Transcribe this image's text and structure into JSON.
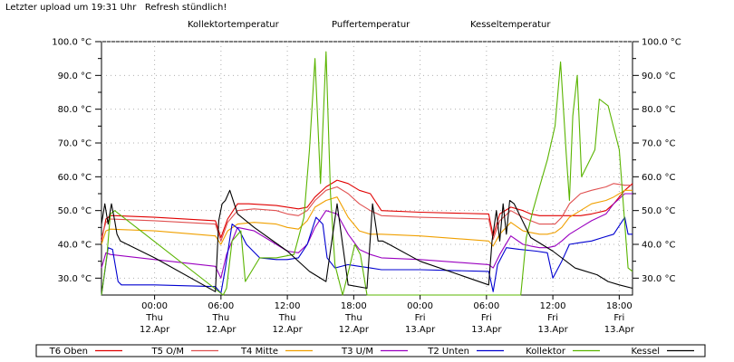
{
  "header": {
    "status_text": "Letzter upload um 19:31 Uhr   Refresh stündlich!",
    "panel_titles": [
      "Kollektortemperatur",
      "Puffertemperatur",
      "Kesseltemperatur"
    ]
  },
  "chart_data": {
    "type": "line",
    "title": "",
    "xlabel": "",
    "ylabel": "",
    "x_unit": "hours since Thu 12.Apr 00:00",
    "xlim": [
      -4.8,
      43.2
    ],
    "ylim": [
      25,
      100
    ],
    "grid": true,
    "y_ticks": [
      30,
      40,
      50,
      60,
      70,
      80,
      90,
      100
    ],
    "y_tick_labels": [
      "30.0 °C",
      "40.0 °C",
      "50.0 °C",
      "60.0 °C",
      "70.0 °C",
      "80.0 °C",
      "90.0 °C",
      "100.0 °C"
    ],
    "x_ticks": [
      {
        "x": 0,
        "time": "00:00",
        "day": "Thu",
        "date": "12.Apr"
      },
      {
        "x": 6,
        "time": "06:00",
        "day": "Thu",
        "date": "12.Apr"
      },
      {
        "x": 12,
        "time": "12:00",
        "day": "Thu",
        "date": "12.Apr"
      },
      {
        "x": 18,
        "time": "18:00",
        "day": "Thu",
        "date": "12.Apr"
      },
      {
        "x": 24,
        "time": "00:00",
        "day": "Fri",
        "date": "13.Apr"
      },
      {
        "x": 30,
        "time": "06:00",
        "day": "Fri",
        "date": "13.Apr"
      },
      {
        "x": 36,
        "time": "12:00",
        "day": "Fri",
        "date": "13.Apr"
      },
      {
        "x": 42,
        "time": "18:00",
        "day": "Fri",
        "date": "13.Apr"
      }
    ],
    "legend_position": "bottom",
    "series": [
      {
        "name": "T6 Oben",
        "color": "#e00000",
        "x": [
          -4.8,
          -4.4,
          -4.0,
          -3.6,
          0,
          5.5,
          6.0,
          6.6,
          7.5,
          8.5,
          11,
          12,
          13,
          13.8,
          14.5,
          15.5,
          16.5,
          17.5,
          18.5,
          19.5,
          20.5,
          24,
          30.2,
          30.6,
          31.2,
          32.2,
          33.3,
          34,
          34.8,
          35.5,
          36.2,
          36.8,
          37.5,
          38.5,
          39.5,
          40.8,
          41.5,
          42.5,
          43.2
        ],
        "y": [
          41,
          47.5,
          48.5,
          48.5,
          48,
          47,
          42,
          47.5,
          52,
          52,
          51.5,
          51,
          50.5,
          51,
          54,
          57,
          59,
          58,
          56,
          55,
          50,
          49.5,
          49,
          42.5,
          49,
          51,
          50,
          49,
          48.5,
          48.5,
          48.5,
          48.5,
          48.5,
          48.5,
          49,
          50,
          52,
          56,
          58
        ]
      },
      {
        "name": "T5 O/M",
        "color": "#e05050",
        "x": [
          -4.8,
          -4.4,
          -4.0,
          0,
          5.5,
          6.0,
          6.6,
          7.5,
          9,
          11,
          12,
          13,
          13.8,
          14.5,
          15.5,
          16.5,
          17.5,
          18.5,
          19.5,
          20.5,
          24,
          30.2,
          30.6,
          31.2,
          32.2,
          33.3,
          34,
          34.8,
          35.5,
          36.2,
          36.8,
          37.5,
          38.5,
          39.5,
          40.8,
          41.5,
          42.5,
          43.2
        ],
        "y": [
          42,
          46.5,
          47.5,
          47,
          46,
          41,
          46.5,
          50,
          50.5,
          50,
          49,
          48.5,
          50,
          53,
          56,
          57,
          55,
          52,
          50,
          48.5,
          48,
          47.5,
          41.5,
          47,
          50,
          48,
          47,
          46,
          46,
          46,
          48,
          52,
          55,
          56,
          57,
          58,
          57.5,
          57.5
        ]
      },
      {
        "name": "T4 Mitte",
        "color": "#f0a000",
        "x": [
          -4.8,
          -4.4,
          -4.0,
          0,
          5.5,
          6.0,
          6.6,
          7.5,
          9,
          11,
          12,
          13,
          13.8,
          14.5,
          15.5,
          16.5,
          17.5,
          18.5,
          19.5,
          20.5,
          24,
          30.2,
          30.6,
          31.2,
          32.2,
          33.3,
          34,
          34.8,
          35.5,
          36.2,
          36.8,
          37.5,
          38.5,
          39.5,
          40.8,
          41.5,
          42.5,
          43.2
        ],
        "y": [
          40,
          44,
          44.5,
          44,
          42.5,
          40,
          44,
          46,
          46.5,
          46,
          45,
          44.5,
          47,
          51,
          53,
          54,
          48,
          44,
          43,
          43,
          42.5,
          41,
          39.5,
          43,
          46.5,
          44,
          43.5,
          43,
          43,
          43.5,
          45,
          48,
          50,
          52,
          53,
          54,
          56,
          56
        ]
      },
      {
        "name": "T3 U/M",
        "color": "#9a00c0",
        "x": [
          -4.8,
          -4.4,
          -4.0,
          0,
          5.5,
          6.0,
          6.5,
          7.5,
          9,
          11,
          12,
          13,
          13.8,
          14.5,
          15.5,
          16.5,
          17.5,
          18.5,
          19.5,
          20.5,
          24,
          30.2,
          30.6,
          31.2,
          32.2,
          33.3,
          34,
          34.8,
          35.5,
          36.2,
          36.8,
          37.5,
          38.5,
          39.5,
          40.8,
          41.5,
          42.5,
          43.2
        ],
        "y": [
          33,
          37.5,
          37,
          35.5,
          33.5,
          30,
          37,
          45,
          44,
          40,
          38,
          37.5,
          40,
          45,
          50,
          49,
          43,
          38.5,
          37,
          36,
          35.5,
          34,
          33,
          37,
          42.5,
          40,
          39.5,
          39,
          39,
          39.5,
          41,
          43,
          45,
          47,
          49,
          52,
          55,
          55
        ]
      },
      {
        "name": "T2 Unten",
        "color": "#0000d0",
        "x": [
          -4.8,
          -4.5,
          -4.2,
          -3.8,
          -3.3,
          -3.0,
          0,
          5.5,
          6.0,
          6.4,
          7.0,
          7.6,
          8.3,
          9.5,
          11,
          12,
          13,
          13.8,
          14.6,
          15.2,
          15.6,
          16.3,
          17.5,
          18.5,
          19.5,
          20.5,
          24,
          30.2,
          30.6,
          31.0,
          31.8,
          33.0,
          34.5,
          35.5,
          36.0,
          36.8,
          37.5,
          38.5,
          39.5,
          40.5,
          41.5,
          42.5,
          42.8,
          43.2
        ],
        "y": [
          25,
          32,
          39,
          38.5,
          29,
          28,
          28,
          27.5,
          25.5,
          33,
          46,
          44.5,
          40,
          36,
          35.5,
          35.5,
          36,
          40,
          48,
          46,
          36,
          33,
          34,
          33.5,
          33,
          32.5,
          32.5,
          32,
          26,
          34,
          39,
          38.5,
          38,
          37.5,
          30,
          35,
          40,
          40.5,
          41,
          42,
          43,
          48,
          43,
          43
        ]
      },
      {
        "name": "Kollektor",
        "color": "#5ab400",
        "x": [
          -4.8,
          -4.3,
          -4.0,
          -3.6,
          6.2,
          6.5,
          7.0,
          7.8,
          8.2,
          9.5,
          11,
          12.6,
          13.5,
          14.0,
          14.5,
          15.0,
          15.5,
          15.9,
          16.3,
          17.0,
          17.6,
          18.1,
          18.6,
          19.2,
          33.1,
          33.6,
          34.2,
          34.8,
          35.5,
          36.2,
          36.7,
          37.2,
          37.5,
          37.8,
          38.2,
          38.6,
          39.2,
          39.8,
          40.2,
          41.0,
          42.0,
          42.8,
          43.2
        ],
        "y": [
          25,
          37,
          49,
          50,
          25,
          27,
          41,
          44,
          29,
          36,
          36,
          37,
          48,
          68,
          95,
          58,
          97,
          55,
          34,
          25,
          33,
          40,
          37,
          25,
          25,
          42,
          50,
          57,
          65,
          75,
          94,
          67,
          53,
          78,
          90,
          60,
          64,
          68,
          83,
          81,
          68,
          33,
          32
        ]
      },
      {
        "name": "Kessel",
        "color": "#000000",
        "x": [
          -4.8,
          -4.5,
          -4.2,
          -3.9,
          -3.6,
          -3.4,
          -3.1,
          0,
          5.5,
          5.8,
          6.1,
          6.4,
          6.8,
          7.5,
          9,
          12,
          14,
          15.5,
          16.5,
          17.5,
          19.2,
          19.7,
          20.2,
          20.6,
          21.2,
          24,
          30.2,
          30.5,
          30.9,
          31.2,
          31.5,
          31.8,
          32.1,
          32.5,
          34,
          36,
          38,
          40,
          41,
          42,
          43.2
        ],
        "y": [
          46,
          52,
          46,
          52,
          47,
          43,
          41,
          36,
          26,
          47,
          52,
          53,
          56,
          49,
          45,
          38,
          32,
          29,
          52,
          28,
          27,
          52,
          41,
          41,
          40,
          35,
          28,
          41,
          50,
          41,
          52,
          43,
          53,
          52,
          42,
          38,
          33,
          31,
          29,
          28,
          27
        ]
      }
    ]
  }
}
